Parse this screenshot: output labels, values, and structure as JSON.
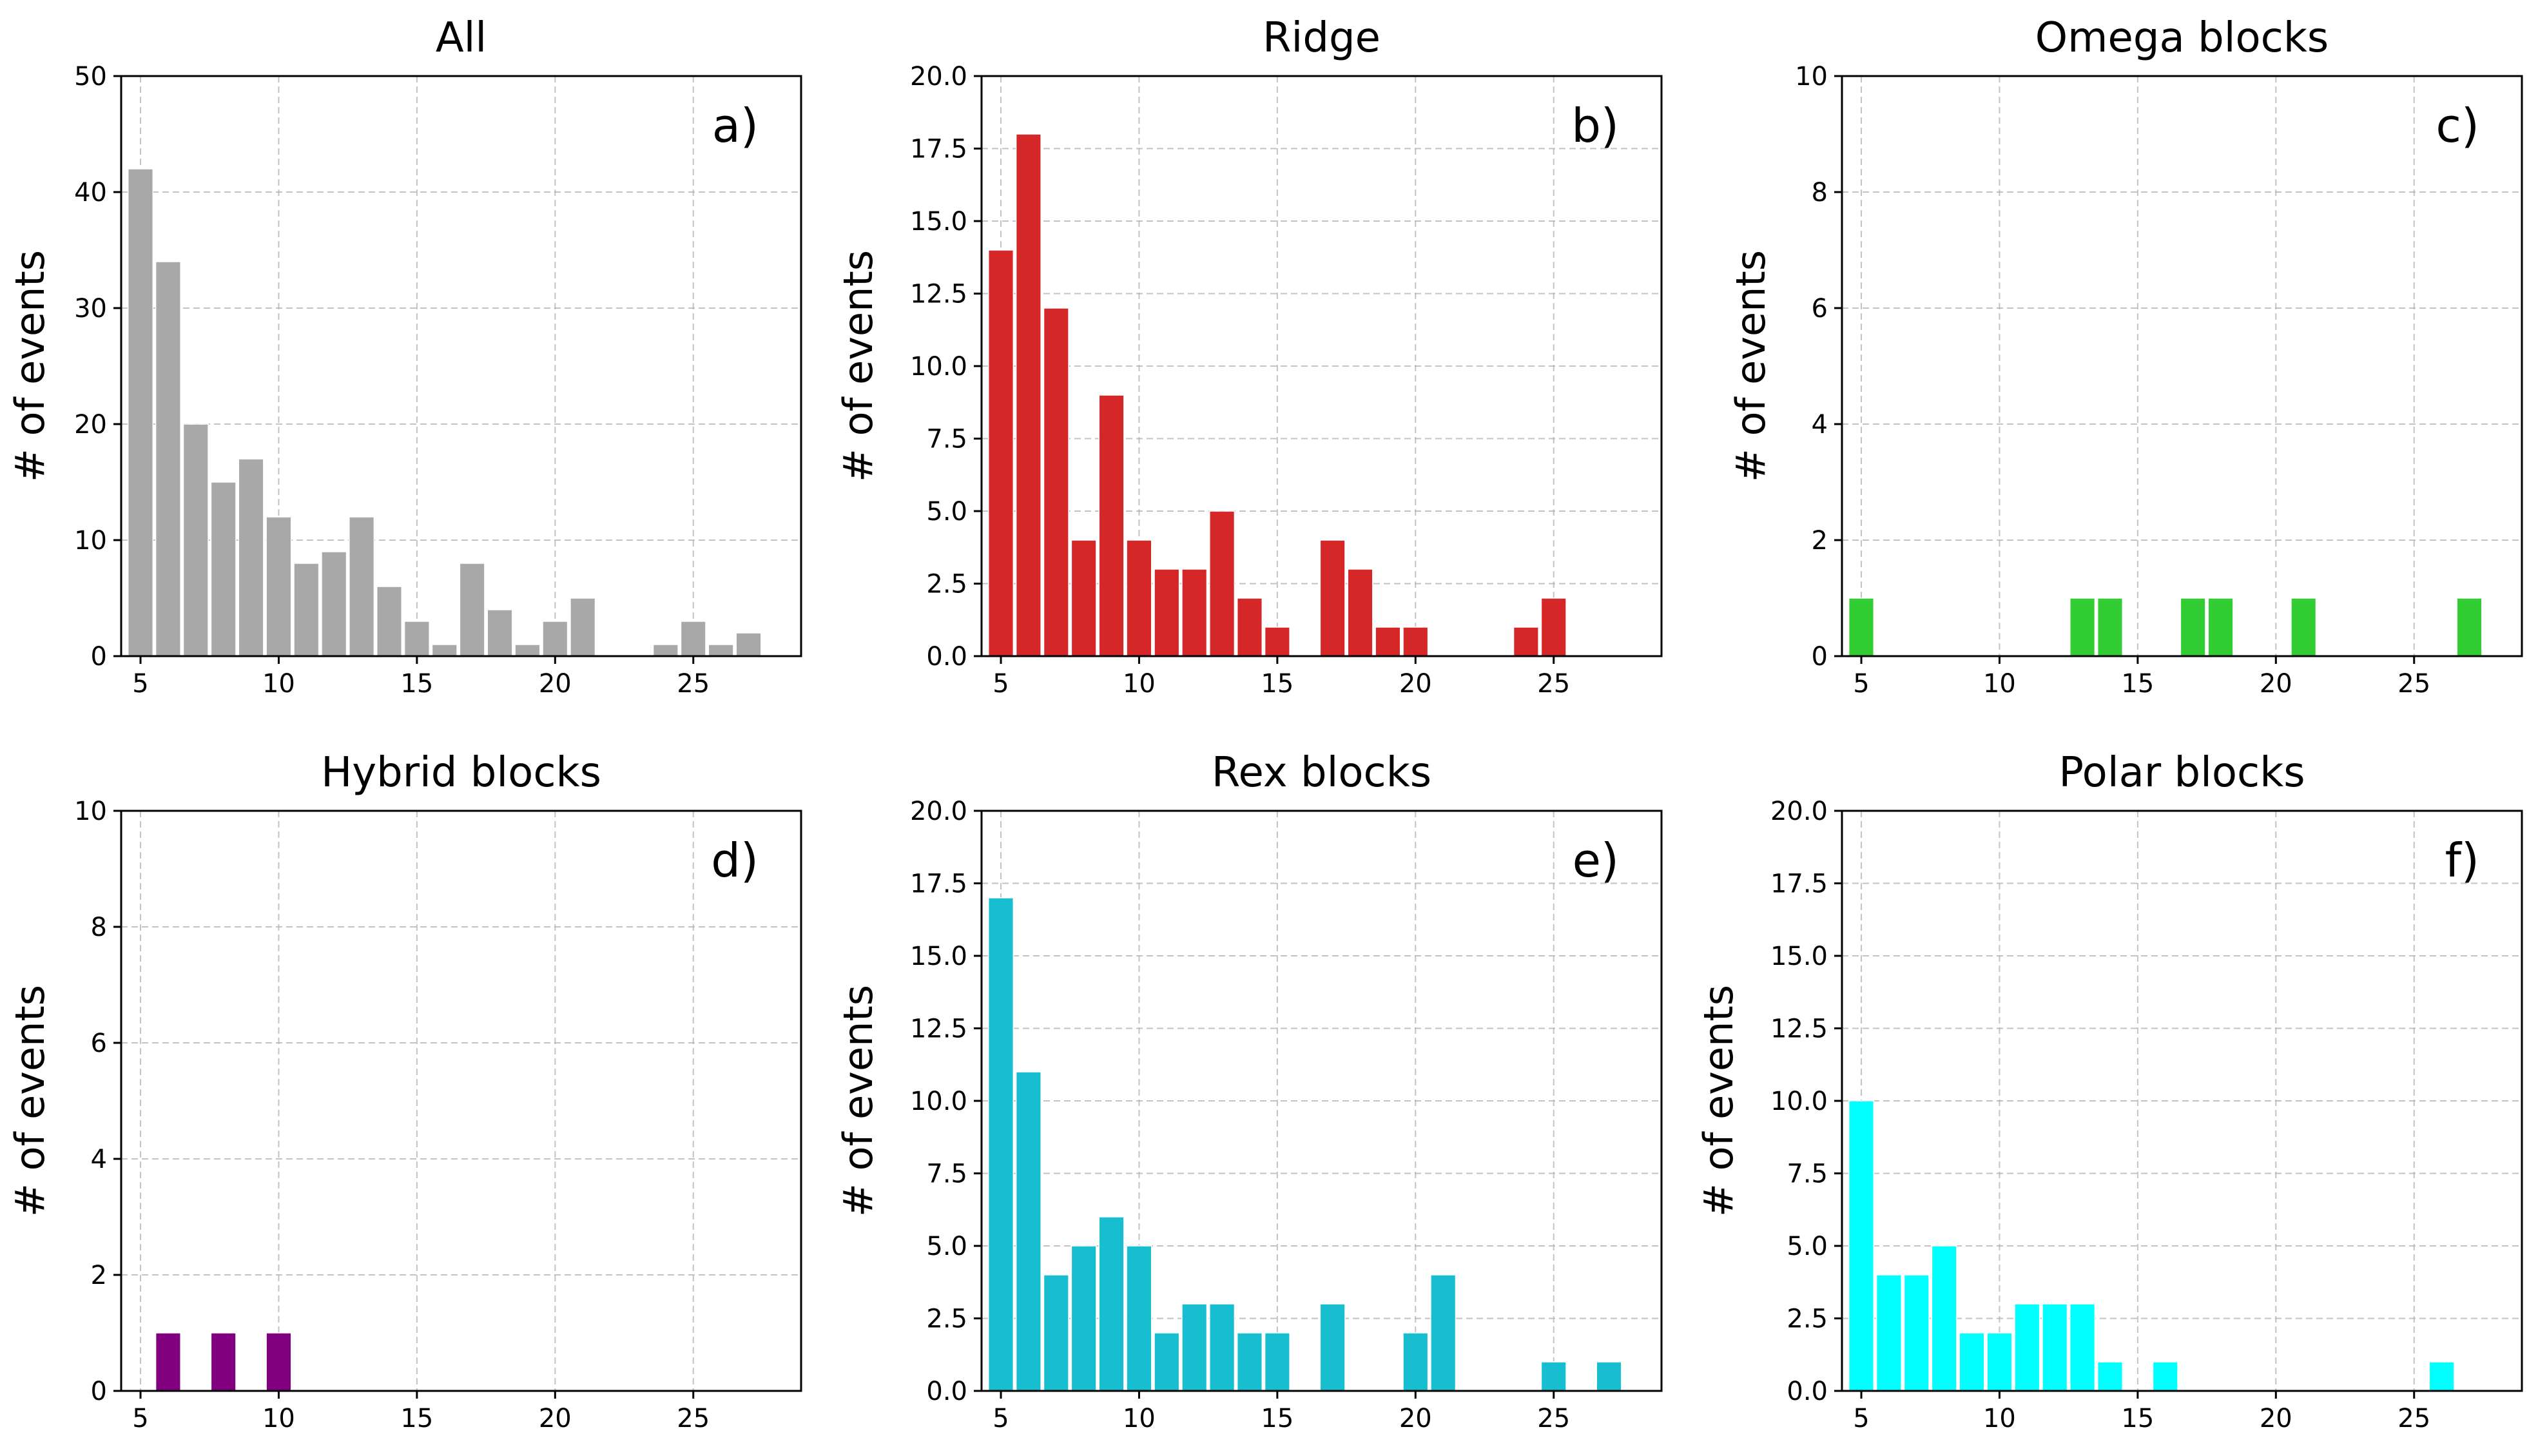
{
  "figure": {
    "bin_width": 1,
    "xlim": [
      4.3,
      28.9
    ],
    "xticks": [
      5,
      10,
      15,
      20,
      25
    ]
  },
  "chart_data": [
    {
      "type": "bar",
      "title": "All",
      "panel_label": "a)",
      "xlabel": "",
      "ylabel": "# of events",
      "color": "#a8a8a8",
      "ylim": [
        0,
        50
      ],
      "yticks": [
        "0",
        "10",
        "20",
        "30",
        "40",
        "50"
      ],
      "x": [
        5,
        6,
        7,
        8,
        9,
        10,
        11,
        12,
        13,
        14,
        15,
        16,
        17,
        18,
        19,
        20,
        21,
        24,
        25,
        26,
        27
      ],
      "values": [
        42,
        34,
        20,
        15,
        17,
        12,
        8,
        9,
        12,
        6,
        3,
        1,
        8,
        4,
        1,
        3,
        5,
        1,
        3,
        1,
        2
      ],
      "grid": true
    },
    {
      "type": "bar",
      "title": "Ridge",
      "panel_label": "b)",
      "xlabel": "",
      "ylabel": "# of events",
      "color": "#d62728",
      "ylim": [
        0,
        20
      ],
      "yticks": [
        "0.0",
        "2.5",
        "5.0",
        "7.5",
        "10.0",
        "12.5",
        "15.0",
        "17.5",
        "20.0"
      ],
      "x": [
        5,
        6,
        7,
        8,
        9,
        10,
        11,
        12,
        13,
        14,
        15,
        17,
        18,
        19,
        20,
        24,
        25
      ],
      "values": [
        14,
        18,
        12,
        4,
        9,
        4,
        3,
        3,
        5,
        2,
        1,
        4,
        3,
        1,
        1,
        1,
        2
      ],
      "grid": true
    },
    {
      "type": "bar",
      "title": "Omega blocks",
      "panel_label": "c)",
      "xlabel": "",
      "ylabel": "# of events",
      "color": "#32cd32",
      "ylim": [
        0,
        10
      ],
      "yticks": [
        "0",
        "2",
        "4",
        "6",
        "8",
        "10"
      ],
      "x": [
        5,
        13,
        14,
        17,
        18,
        21,
        27
      ],
      "values": [
        1,
        1,
        1,
        1,
        1,
        1,
        1
      ],
      "grid": true
    },
    {
      "type": "bar",
      "title": "Hybrid blocks",
      "panel_label": "d)",
      "xlabel": "",
      "ylabel": "# of events",
      "color": "#800080",
      "ylim": [
        0,
        10
      ],
      "yticks": [
        "0",
        "2",
        "4",
        "6",
        "8",
        "10"
      ],
      "x": [
        6,
        8,
        10
      ],
      "values": [
        1,
        1,
        1
      ],
      "grid": true
    },
    {
      "type": "bar",
      "title": "Rex blocks",
      "panel_label": "e)",
      "xlabel": "",
      "ylabel": "# of events",
      "color": "#17becf",
      "ylim": [
        0,
        20
      ],
      "yticks": [
        "0.0",
        "2.5",
        "5.0",
        "7.5",
        "10.0",
        "12.5",
        "15.0",
        "17.5",
        "20.0"
      ],
      "x": [
        5,
        6,
        7,
        8,
        9,
        10,
        11,
        12,
        13,
        14,
        15,
        17,
        20,
        21,
        25,
        27
      ],
      "values": [
        17,
        11,
        4,
        5,
        6,
        5,
        2,
        3,
        3,
        2,
        2,
        3,
        2,
        4,
        1,
        1
      ],
      "grid": true
    },
    {
      "type": "bar",
      "title": "Polar blocks",
      "panel_label": "f)",
      "xlabel": "",
      "ylabel": "# of events",
      "color": "#00ffff",
      "ylim": [
        0,
        20
      ],
      "yticks": [
        "0.0",
        "2.5",
        "5.0",
        "7.5",
        "10.0",
        "12.5",
        "15.0",
        "17.5",
        "20.0"
      ],
      "x": [
        5,
        6,
        7,
        8,
        9,
        10,
        11,
        12,
        13,
        14,
        16,
        26
      ],
      "values": [
        10,
        4,
        4,
        5,
        2,
        2,
        3,
        3,
        3,
        1,
        1,
        1
      ],
      "grid": true
    }
  ]
}
